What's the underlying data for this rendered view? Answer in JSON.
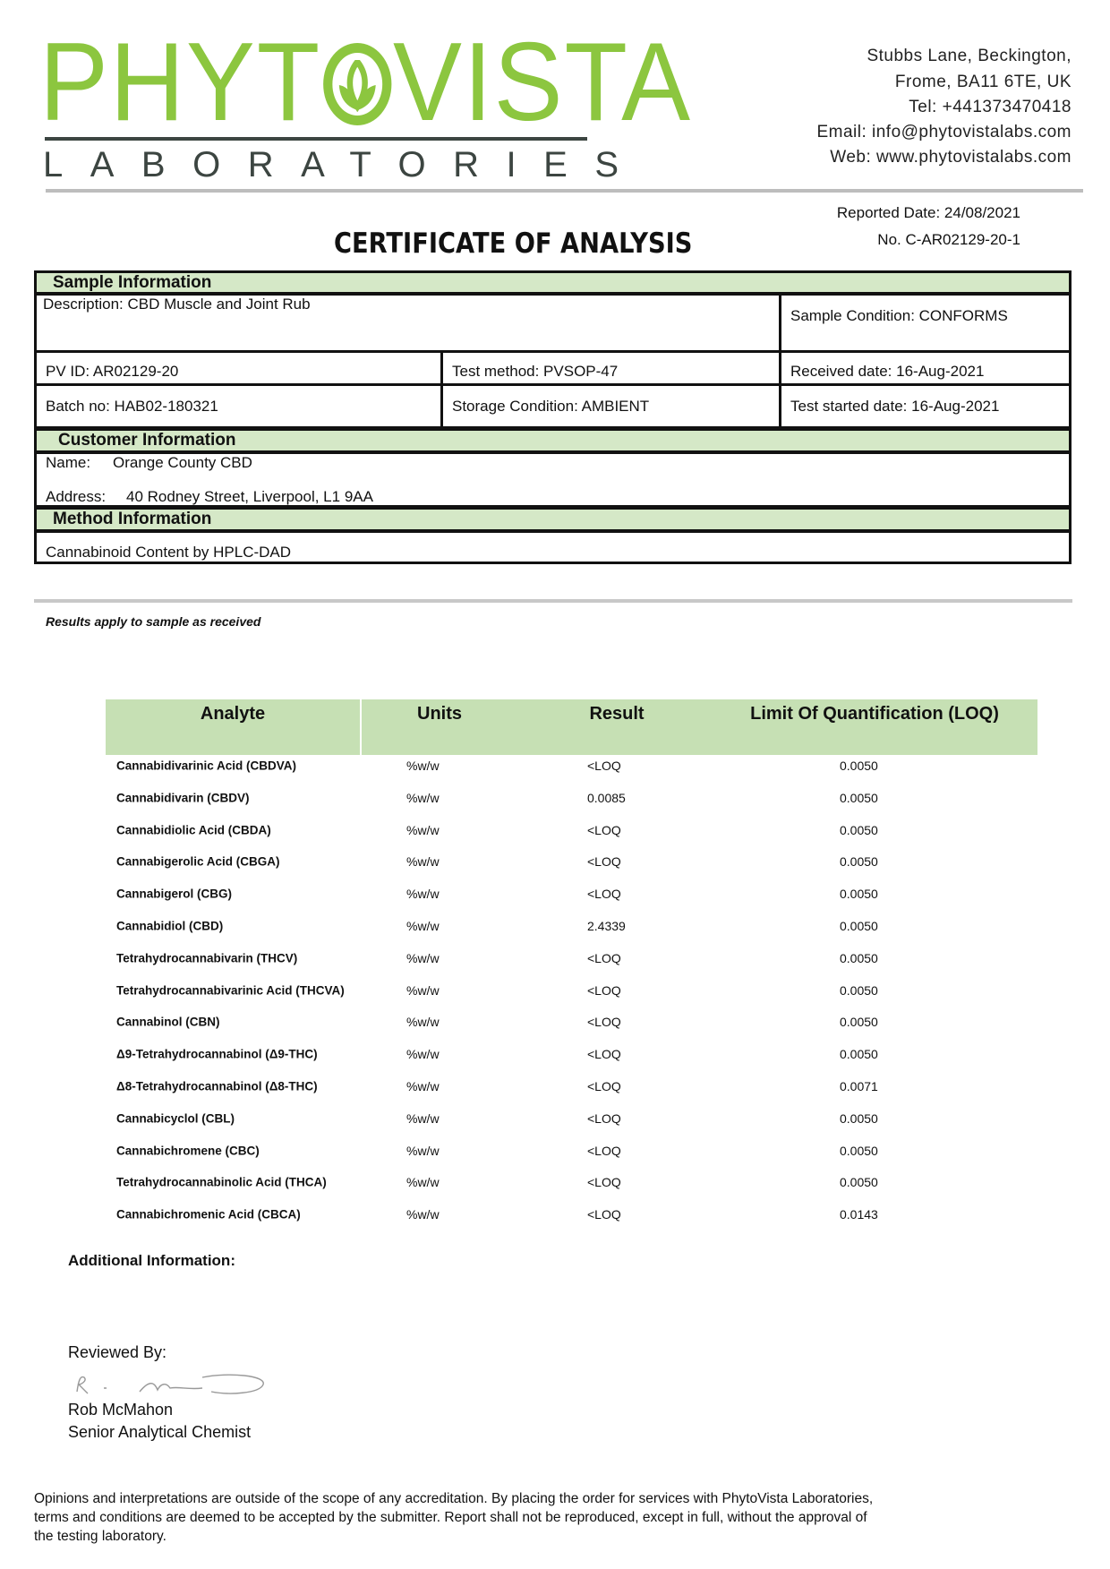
{
  "logo": {
    "brand_left": "PHYT",
    "brand_right": "VISTA",
    "subtitle": "LABORATORIES",
    "color": "#8cc63f"
  },
  "address": [
    "Stubbs Lane, Beckington,",
    "Frome, BA11 6TE, UK",
    "Tel: +441373470418",
    "Email: info@phytovistalabs.com",
    "Web: www.phytovistalabs.com"
  ],
  "report": {
    "reported_date": "Reported Date: 24/08/2021",
    "number": "No. C-AR02129-20-1",
    "title": "CERTIFICATE OF ANALYSIS"
  },
  "sample": {
    "header": "Sample Information",
    "description": "Description: CBD Muscle and Joint Rub",
    "condition": "Sample Condition: CONFORMS",
    "pv_id": "PV ID: AR02129-20",
    "test_method": "Test method: PVSOP-47",
    "received": "Received date: 16-Aug-2021",
    "batch": "Batch no: HAB02-180321",
    "storage": "Storage Condition: AMBIENT",
    "test_started": "Test started date: 16-Aug-2021"
  },
  "customer": {
    "header": "Customer Information",
    "name_label": "Name:",
    "name": "Orange County CBD",
    "address_label": "Address:",
    "address": "40 Rodney Street, Liverpool, L1 9AA"
  },
  "method": {
    "header": "Method Information",
    "text": "Cannabinoid Content by HPLC-DAD"
  },
  "results_note": "Results apply to sample as received",
  "results": {
    "columns": [
      "Analyte",
      "Units",
      "Result",
      "Limit Of Quantification (LOQ)"
    ],
    "header_color": "#c6e0b4",
    "rows": [
      [
        "Cannabidivarinic Acid (CBDVA)",
        "%w/w",
        "<LOQ",
        "0.0050"
      ],
      [
        "Cannabidivarin (CBDV)",
        "%w/w",
        "0.0085",
        "0.0050"
      ],
      [
        "Cannabidiolic Acid (CBDA)",
        "%w/w",
        "<LOQ",
        "0.0050"
      ],
      [
        "Cannabigerolic Acid (CBGA)",
        "%w/w",
        "<LOQ",
        "0.0050"
      ],
      [
        "Cannabigerol (CBG)",
        "%w/w",
        "<LOQ",
        "0.0050"
      ],
      [
        "Cannabidiol (CBD)",
        "%w/w",
        "2.4339",
        "0.0050"
      ],
      [
        "Tetrahydrocannabivarin (THCV)",
        "%w/w",
        "<LOQ",
        "0.0050"
      ],
      [
        "Tetrahydrocannabivarinic Acid (THCVA)",
        "%w/w",
        "<LOQ",
        "0.0050"
      ],
      [
        "Cannabinol (CBN)",
        "%w/w",
        "<LOQ",
        "0.0050"
      ],
      [
        "Δ9-Tetrahydrocannabinol (Δ9-THC)",
        "%w/w",
        "<LOQ",
        "0.0050"
      ],
      [
        "Δ8-Tetrahydrocannabinol (Δ8-THC)",
        "%w/w",
        "<LOQ",
        "0.0071"
      ],
      [
        "Cannabicyclol (CBL)",
        "%w/w",
        "<LOQ",
        "0.0050"
      ],
      [
        "Cannabichromene (CBC)",
        "%w/w",
        "<LOQ",
        "0.0050"
      ],
      [
        "Tetrahydrocannabinolic Acid (THCA)",
        "%w/w",
        "<LOQ",
        "0.0050"
      ],
      [
        "Cannabichromenic Acid (CBCA)",
        "%w/w",
        "<LOQ",
        "0.0143"
      ]
    ]
  },
  "additional_info": "Additional Information:",
  "review": {
    "label": "Reviewed By:",
    "signature": "R. McMahon",
    "name": "Rob McMahon",
    "title": "Senior Analytical Chemist"
  },
  "footer": [
    "Opinions and interpretations are outside of the scope of any accreditation. By placing the order for services with PhytoVista Laboratories,",
    "terms and conditions are deemed to be accepted by the submitter. Report shall not be reproduced, except in full, without the approval of",
    "the testing laboratory."
  ]
}
